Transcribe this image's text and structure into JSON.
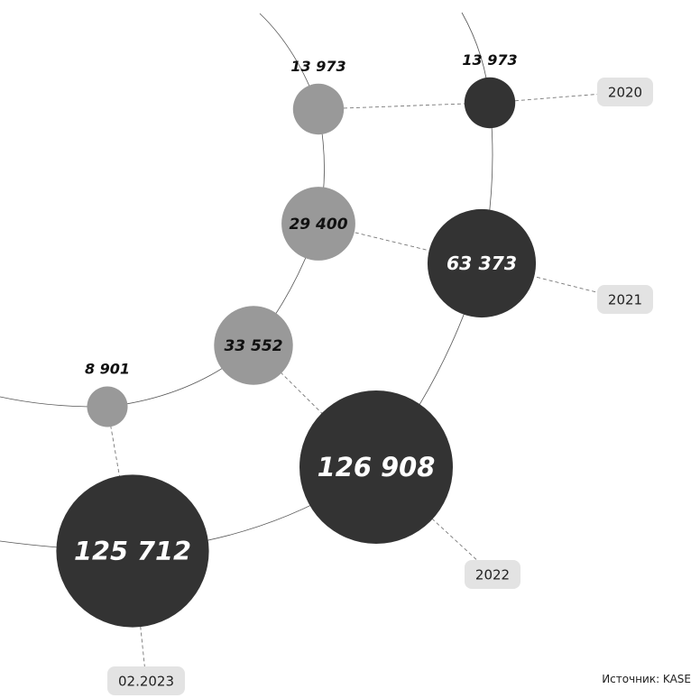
{
  "chart_data": {
    "type": "bubble",
    "series": [
      {
        "color": "#999999",
        "values": [
          {
            "period": "2020",
            "value": 13973,
            "label": "13 973"
          },
          {
            "period": "2021",
            "value": 29400,
            "label": "29 400"
          },
          {
            "period": "2022",
            "value": 33552,
            "label": "33 552"
          },
          {
            "period": "02.2023",
            "value": 8901,
            "label": "8 901"
          }
        ]
      },
      {
        "color": "#333333",
        "values": [
          {
            "period": "2020",
            "value": 13973,
            "label": "13 973"
          },
          {
            "period": "2021",
            "value": 63373,
            "label": "63 373"
          },
          {
            "period": "2022",
            "value": 126908,
            "label": "126 908"
          },
          {
            "period": "02.2023",
            "value": 125712,
            "label": "125 712"
          }
        ]
      }
    ],
    "period_labels": [
      "2020",
      "2021",
      "2022",
      "02.2023"
    ],
    "label_box_color": "#e3e3e3",
    "connector_color": "#777777"
  },
  "source": "Источник: KASE"
}
